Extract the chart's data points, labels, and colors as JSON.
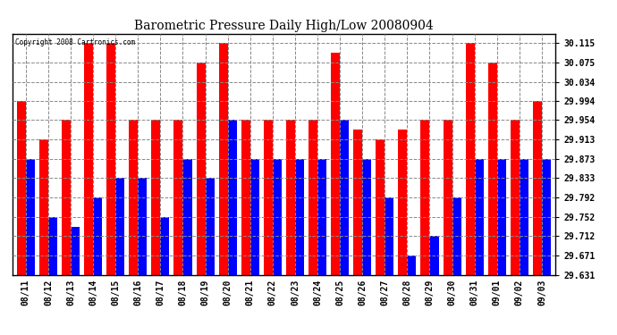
{
  "title": "Barometric Pressure Daily High/Low 20080904",
  "copyright": "Copyright 2008 Cartronics.com",
  "categories": [
    "08/11",
    "08/12",
    "08/13",
    "08/14",
    "08/15",
    "08/16",
    "08/17",
    "08/18",
    "08/19",
    "08/20",
    "08/21",
    "08/22",
    "08/23",
    "08/24",
    "08/25",
    "08/26",
    "08/27",
    "08/28",
    "08/29",
    "08/30",
    "08/31",
    "09/01",
    "09/02",
    "09/03"
  ],
  "highs": [
    29.994,
    29.913,
    29.954,
    30.115,
    30.115,
    29.954,
    29.954,
    29.954,
    30.075,
    30.115,
    29.954,
    29.954,
    29.954,
    29.954,
    30.094,
    29.934,
    29.913,
    29.934,
    29.954,
    29.954,
    30.115,
    30.075,
    29.954,
    29.994
  ],
  "lows": [
    29.873,
    29.752,
    29.731,
    29.792,
    29.833,
    29.833,
    29.752,
    29.873,
    29.833,
    29.954,
    29.873,
    29.873,
    29.873,
    29.873,
    29.954,
    29.873,
    29.792,
    29.671,
    29.712,
    29.792,
    29.873,
    29.873,
    29.873,
    29.873
  ],
  "high_color": "#ff0000",
  "low_color": "#0000ff",
  "background_color": "#ffffff",
  "plot_background": "#ffffff",
  "grid_color": "#aaaaaa",
  "yticks": [
    29.631,
    29.671,
    29.712,
    29.752,
    29.792,
    29.833,
    29.873,
    29.913,
    29.954,
    29.994,
    30.034,
    30.075,
    30.115
  ],
  "ymin": 29.631,
  "ymax": 30.135,
  "bar_width": 0.4
}
